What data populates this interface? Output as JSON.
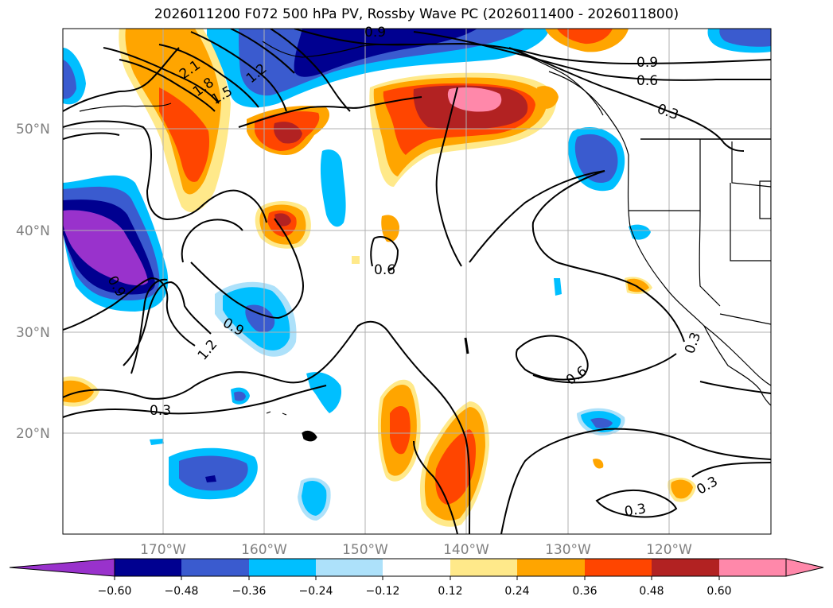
{
  "title": "2026011200 F072 500 hPa PV, Rossby Wave PC (2026011400 - 2026011800)",
  "lat_labels": [
    "50°N",
    "40°N",
    "30°N",
    "20°N"
  ],
  "lon_labels": [
    "170°W",
    "160°W",
    "150°W",
    "140°W",
    "130°W",
    "120°W"
  ],
  "colorbar": {
    "ticks": [
      "−0.60",
      "−0.48",
      "−0.36",
      "−0.24",
      "−0.12",
      "0.12",
      "0.24",
      "0.36",
      "0.48",
      "0.60"
    ],
    "colors": [
      "#9932CC",
      "#000090",
      "#3A5BCF",
      "#00BFFF",
      "#ADE1FA",
      "#FFFFFF",
      "#FFE98A",
      "#FFA500",
      "#FF4500",
      "#B22222",
      "#FF88AA",
      "#FF88AA"
    ]
  },
  "contour_labels": [
    "2.1",
    "1.8",
    "1.5",
    "1.2",
    "0.9",
    "0.9",
    "0.6",
    "0.3",
    "0.3",
    "0.6",
    "0.6",
    "0.3",
    "0.3",
    "0.3",
    "0.9",
    "0.9",
    "1.2"
  ]
}
